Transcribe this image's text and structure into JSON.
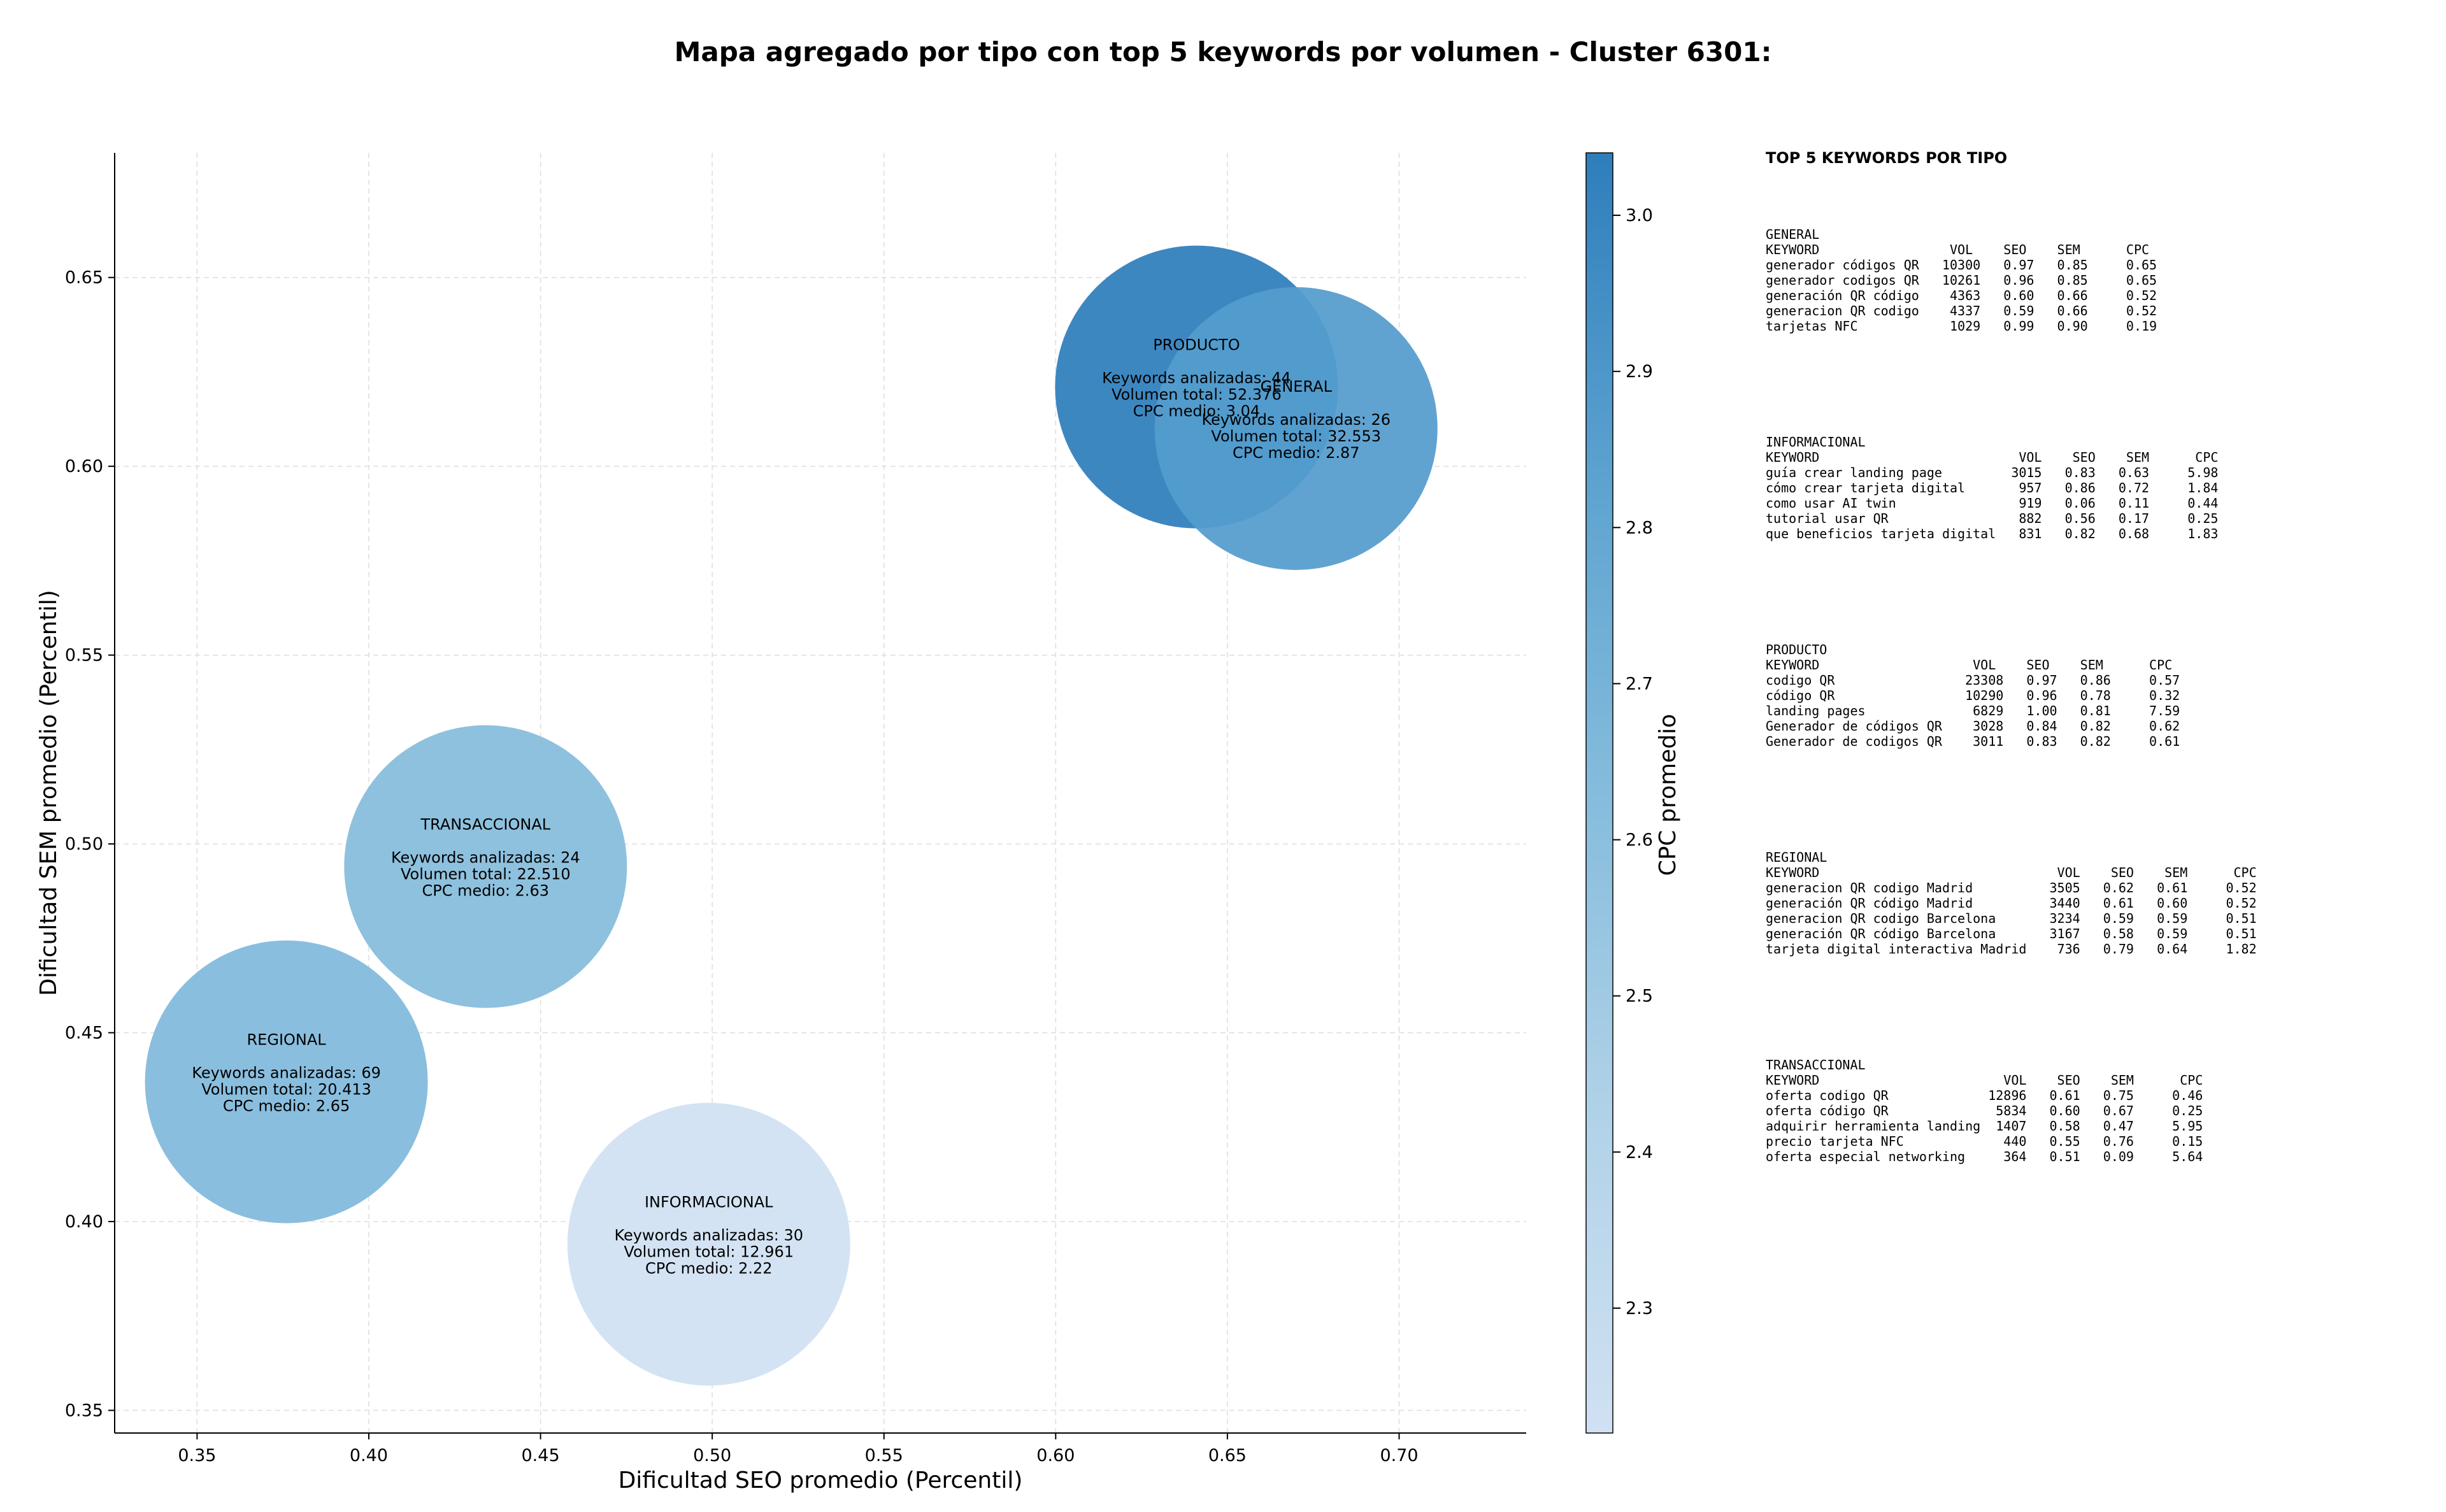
{
  "chart_data": {
    "type": "scatter",
    "title": "Mapa agregado por tipo con top 5 keywords por volumen - Cluster 6301:",
    "xlabel": "Dificultad SEO promedio (Percentil)",
    "ylabel": "Dificultad SEM promedio (Percentil)",
    "xlim": [
      0.326,
      0.737
    ],
    "ylim": [
      0.344,
      0.683
    ],
    "xticks": [
      "0.35",
      "0.40",
      "0.45",
      "0.50",
      "0.55",
      "0.60",
      "0.65",
      "0.70"
    ],
    "yticks": [
      "0.35",
      "0.40",
      "0.45",
      "0.50",
      "0.55",
      "0.60",
      "0.65"
    ],
    "grid": true,
    "colorbar": {
      "label": "CPC promedio",
      "min": 2.22,
      "max": 3.04,
      "ticks": [
        "2.3",
        "2.4",
        "2.5",
        "2.6",
        "2.7",
        "2.8",
        "2.9",
        "3.0"
      ],
      "colormap": "Blues",
      "color_low": "#d0e1f2",
      "color_high": "#2e7ebc"
    },
    "bubble_size_by": "keywords",
    "points": [
      {
        "name": "PRODUCTO",
        "x": 0.641,
        "y": 0.621,
        "keywords": 44,
        "volumen": 52376,
        "cpc": 3.04,
        "lines": [
          "Keywords analizadas: 44",
          "Volumen total: 52.376",
          "CPC medio: 3.04"
        ]
      },
      {
        "name": "GENERAL",
        "x": 0.67,
        "y": 0.61,
        "keywords": 26,
        "volumen": 32553,
        "cpc": 2.87,
        "lines": [
          "Keywords analizadas: 26",
          "Volumen total: 32.553",
          "CPC medio: 2.87"
        ]
      },
      {
        "name": "TRANSACCIONAL",
        "x": 0.434,
        "y": 0.494,
        "keywords": 24,
        "volumen": 22510,
        "cpc": 2.63,
        "lines": [
          "Keywords analizadas: 24",
          "Volumen total: 22.510",
          "CPC medio: 2.63"
        ]
      },
      {
        "name": "REGIONAL",
        "x": 0.376,
        "y": 0.437,
        "keywords": 69,
        "volumen": 20413,
        "cpc": 2.65,
        "lines": [
          "Keywords analizadas: 69",
          "Volumen total: 20.413",
          "CPC medio: 2.65"
        ]
      },
      {
        "name": "INFORMACIONAL",
        "x": 0.499,
        "y": 0.394,
        "keywords": 30,
        "volumen": 12961,
        "cpc": 2.22,
        "lines": [
          "Keywords analizadas: 30",
          "Volumen total: 12.961",
          "CPC medio: 2.22"
        ]
      }
    ]
  },
  "side_panel": {
    "title": "TOP 5 KEYWORDS POR TIPO",
    "blocks": [
      {
        "name": "GENERAL",
        "lines": [
          "KEYWORD                 VOL    SEO    SEM      CPC",
          "generador códigos QR   10300   0.97   0.85     0.65",
          "generador codigos QR   10261   0.96   0.85     0.65",
          "generación QR código    4363   0.60   0.66     0.52",
          "generacion QR codigo    4337   0.59   0.66     0.52",
          "tarjetas NFC            1029   0.99   0.90     0.19"
        ]
      },
      {
        "name": "INFORMACIONAL",
        "lines": [
          "KEYWORD                          VOL    SEO    SEM      CPC",
          "guía crear landing page         3015   0.83   0.63     5.98",
          "cómo crear tarjeta digital       957   0.86   0.72     1.84",
          "como usar AI twin                919   0.06   0.11     0.44",
          "tutorial usar QR                 882   0.56   0.17     0.25",
          "que beneficios tarjeta digital   831   0.82   0.68     1.83"
        ]
      },
      {
        "name": "PRODUCTO",
        "lines": [
          "KEYWORD                    VOL    SEO    SEM      CPC",
          "codigo QR                 23308   0.97   0.86     0.57",
          "código QR                 10290   0.96   0.78     0.32",
          "landing pages              6829   1.00   0.81     7.59",
          "Generador de códigos QR    3028   0.84   0.82     0.62",
          "Generador de codigos QR    3011   0.83   0.82     0.61"
        ]
      },
      {
        "name": "REGIONAL",
        "lines": [
          "KEYWORD                               VOL    SEO    SEM      CPC",
          "generacion QR codigo Madrid          3505   0.62   0.61     0.52",
          "generación QR código Madrid          3440   0.61   0.60     0.52",
          "generacion QR codigo Barcelona       3234   0.59   0.59     0.51",
          "generación QR código Barcelona       3167   0.58   0.59     0.51",
          "tarjeta digital interactiva Madrid    736   0.79   0.64     1.82"
        ]
      },
      {
        "name": "TRANSACCIONAL",
        "lines": [
          "KEYWORD                        VOL    SEO    SEM      CPC",
          "oferta codigo QR             12896   0.61   0.75     0.46",
          "oferta código QR              5834   0.60   0.67     0.25",
          "adquirir herramienta landing  1407   0.58   0.47     5.95",
          "precio tarjeta NFC             440   0.55   0.76     0.15",
          "oferta especial networking     364   0.51   0.09     5.64"
        ]
      }
    ]
  }
}
